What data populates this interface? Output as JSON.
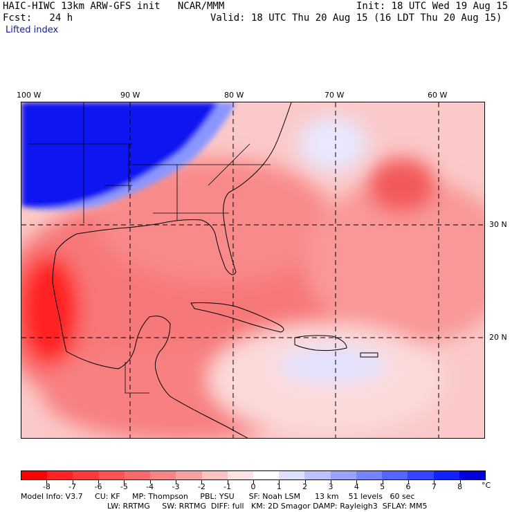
{
  "header": {
    "title": "HAIC-HIWC 13km ARW-GFS init   NCAR/MMM",
    "init": "Init: 18 UTC Wed 19 Aug 15",
    "fcst": "Fcst:   24 h",
    "valid": "Valid: 18 UTC Thu 20 Aug 15 (16 LDT Thu 20 Aug 15)",
    "field": "Lifted index"
  },
  "axes": {
    "lon_labels": [
      "100 W",
      "90 W",
      "80 W",
      "70 W",
      "60 W"
    ],
    "lat_labels": [
      "30 N",
      "20 N"
    ]
  },
  "colorbar": {
    "labels": [
      "-8",
      "-7",
      "-6",
      "-5",
      "-4",
      "-3",
      "-2",
      "-1",
      "0",
      "1",
      "2",
      "3",
      "4",
      "5",
      "6",
      "7",
      "8"
    ],
    "unit": "°C",
    "colors": [
      "#ff0000",
      "#ff2222",
      "#fd3a3a",
      "#fb5252",
      "#f96a6a",
      "#f88484",
      "#f9a2a2",
      "#fbc2c2",
      "#fde4e4",
      "#ffffff",
      "#dde0ff",
      "#bbc2ff",
      "#99a2ff",
      "#7784ff",
      "#5566ff",
      "#3344ff",
      "#1122ff",
      "#0000dd"
    ]
  },
  "model_info": {
    "line1": "Model Info: V3.7     CU: KF     MP: Thompson     PBL: YSU      SF: Noah LSM      13 km    51 levels   60 sec",
    "line2": "LW: RRTMG     SW: RRTMG  DIFF: full   KM: 2D Smagor DAMP: Rayleigh3  SFLAY: MM5"
  }
}
